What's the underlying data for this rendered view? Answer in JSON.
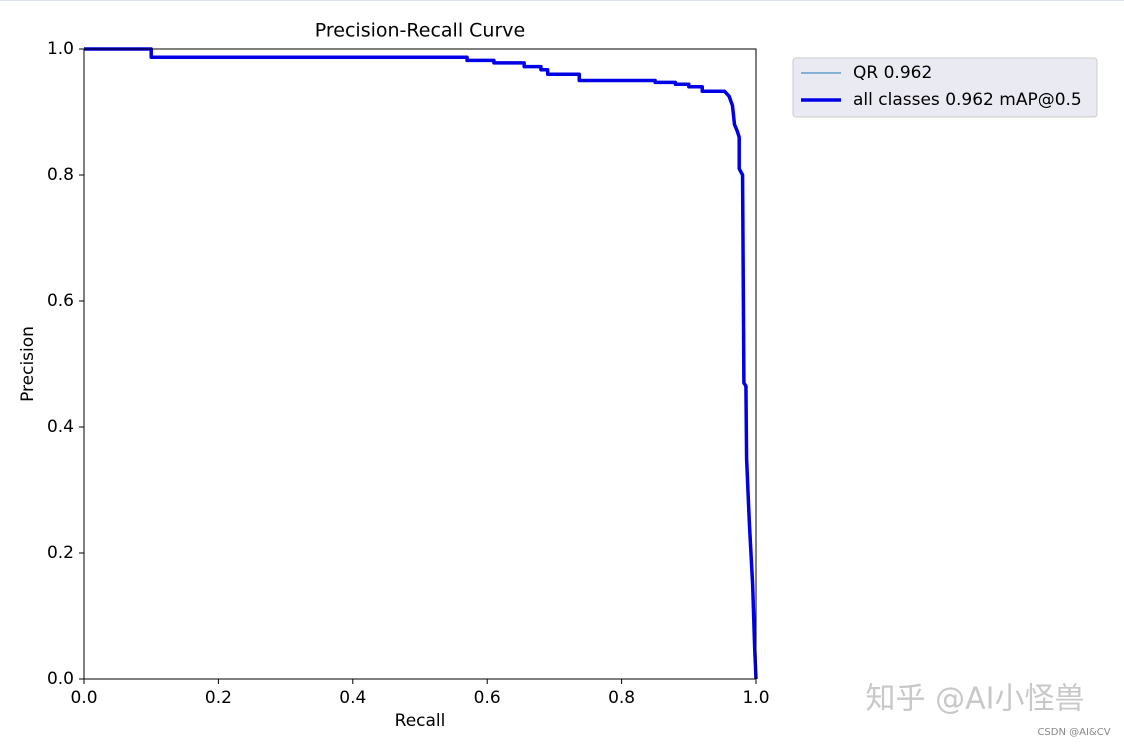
{
  "chart_data": {
    "type": "line",
    "title": "Precision-Recall Curve",
    "x_label": "Recall",
    "y_label": "Precision",
    "xlim": [
      0,
      1
    ],
    "ylim": [
      0,
      1
    ],
    "xticks": [
      {
        "value": 0,
        "label": "0.0"
      },
      0.2,
      0.4,
      0.6,
      0.8,
      {
        "value": 1,
        "label": "1.0"
      }
    ],
    "yticks": [
      {
        "value": 0,
        "label": "0.0"
      },
      0.2,
      0.4,
      0.6,
      0.8,
      {
        "value": 1,
        "label": "1.0"
      }
    ],
    "grid": false,
    "legend": "right",
    "x": [
      0,
      0.1,
      0.1,
      0.57,
      0.57,
      0.61,
      0.61,
      0.655,
      0.655,
      0.68,
      0.68,
      0.69,
      0.69,
      0.737,
      0.737,
      0.85,
      0.85,
      0.88,
      0.88,
      0.9,
      0.9,
      0.92,
      0.92,
      0.953,
      0.96,
      0.965,
      0.968,
      0.972,
      0.975,
      0.975,
      0.98,
      0.982,
      0.985,
      0.986,
      0.99,
      0.995,
      0.998,
      1.0
    ],
    "series": [
      {
        "name": "QR 0.962",
        "color": "#1f77b4",
        "width": 1,
        "values": [
          1.0,
          1.0,
          0.987,
          0.987,
          0.982,
          0.982,
          0.978,
          0.978,
          0.972,
          0.972,
          0.967,
          0.967,
          0.96,
          0.96,
          0.95,
          0.95,
          0.947,
          0.947,
          0.944,
          0.944,
          0.94,
          0.94,
          0.933,
          0.933,
          0.925,
          0.91,
          0.88,
          0.87,
          0.86,
          0.81,
          0.8,
          0.47,
          0.465,
          0.35,
          0.25,
          0.15,
          0.05,
          0
        ]
      },
      {
        "name": "all classes 0.962 mAP@0.5",
        "color": "#0000e6",
        "width": 3.5,
        "values": [
          1.0,
          1.0,
          0.987,
          0.987,
          0.982,
          0.982,
          0.978,
          0.978,
          0.972,
          0.972,
          0.967,
          0.967,
          0.96,
          0.96,
          0.95,
          0.95,
          0.947,
          0.947,
          0.944,
          0.944,
          0.94,
          0.94,
          0.933,
          0.933,
          0.925,
          0.91,
          0.88,
          0.87,
          0.86,
          0.81,
          0.8,
          0.47,
          0.465,
          0.35,
          0.25,
          0.15,
          0.05,
          0
        ]
      }
    ],
    "annotations": [
      "知乎 @AI小怪兽",
      "CSDN @AI&CV"
    ]
  }
}
